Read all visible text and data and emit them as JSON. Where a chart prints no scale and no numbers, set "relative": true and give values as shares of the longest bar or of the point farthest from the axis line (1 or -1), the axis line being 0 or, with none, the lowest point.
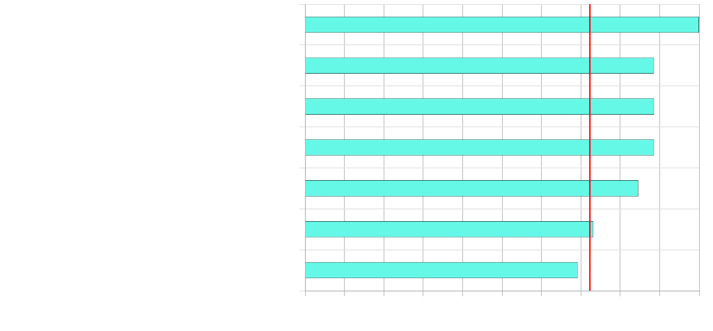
{
  "chart_data": {
    "type": "bar",
    "orientation": "horizontal",
    "relative": true,
    "categories": [
      null,
      null,
      null,
      null,
      null,
      null,
      null
    ],
    "values": [
      1,
      0.886,
      0.886,
      0.886,
      0.846,
      0.732,
      0.692
    ],
    "color": "#66f8e6",
    "grid": true,
    "ref_lines": [
      {
        "axis": "x",
        "value": 0.723,
        "color": "#ff0000"
      }
    ]
  }
}
